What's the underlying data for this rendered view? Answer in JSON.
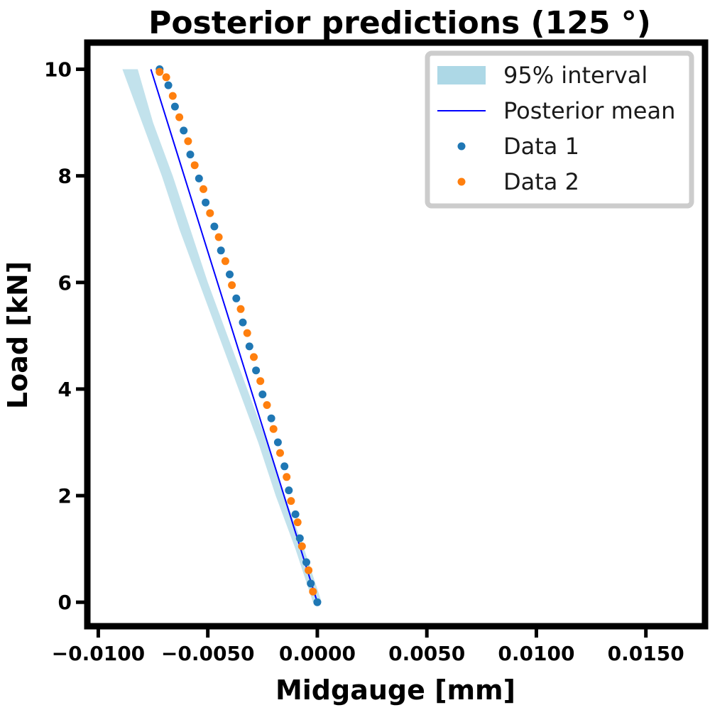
{
  "chart_data": {
    "type": "scatter",
    "title": "Posterior predictions (125 °)",
    "xlabel": "Midgauge [mm]",
    "ylabel": "Load [kN]",
    "xlim": [
      -0.0105,
      0.0177
    ],
    "ylim": [
      -0.45,
      10.5
    ],
    "x_ticks": [
      {
        "value": -0.01,
        "label": "−0.0100"
      },
      {
        "value": -0.005,
        "label": "−0.0050"
      },
      {
        "value": 0.0,
        "label": "0.0000"
      },
      {
        "value": 0.005,
        "label": "0.0050"
      },
      {
        "value": 0.01,
        "label": "0.0100"
      },
      {
        "value": 0.015,
        "label": "0.0150"
      }
    ],
    "y_ticks": [
      {
        "value": 0,
        "label": "0"
      },
      {
        "value": 2,
        "label": "2"
      },
      {
        "value": 4,
        "label": "4"
      },
      {
        "value": 6,
        "label": "6"
      },
      {
        "value": 8,
        "label": "8"
      },
      {
        "value": 10,
        "label": "10"
      }
    ],
    "grid": false,
    "legend_position": "top-right",
    "legend": [
      {
        "label": "95% interval",
        "kind": "band",
        "color": "#add8e6"
      },
      {
        "label": "Posterior mean",
        "kind": "line",
        "color": "#0000ff"
      },
      {
        "label": "Data 1",
        "kind": "marker",
        "color": "#1f77b4"
      },
      {
        "label": "Data 2",
        "kind": "marker",
        "color": "#ff7f0e"
      }
    ],
    "interval": {
      "color": "#add8e6",
      "y": [
        0,
        1,
        2,
        3,
        4,
        5,
        6,
        7,
        8,
        9,
        10
      ],
      "lower": [
        -0.0002,
        -0.001,
        -0.0019,
        -0.0027,
        -0.0036,
        -0.0045,
        -0.0054,
        -0.0063,
        -0.0071,
        -0.008,
        -0.0089
      ],
      "upper": [
        0.0002,
        -0.0006,
        -0.0015,
        -0.0023,
        -0.0032,
        -0.0041,
        -0.005,
        -0.0058,
        -0.0066,
        -0.0075,
        -0.0082
      ]
    },
    "series": [
      {
        "name": "Posterior mean",
        "kind": "line",
        "color": "#0000ff",
        "x": [
          0.0,
          -0.0076
        ],
        "y": [
          0.0,
          10.0
        ]
      },
      {
        "name": "Data 1",
        "kind": "scatter",
        "color": "#1f77b4",
        "x": [
          0.0,
          -0.0003,
          -0.0005,
          -0.0008,
          -0.001,
          -0.0013,
          -0.0015,
          -0.0018,
          -0.0021,
          -0.0025,
          -0.0028,
          -0.0031,
          -0.0034,
          -0.0037,
          -0.004,
          -0.0044,
          -0.0047,
          -0.0051,
          -0.0054,
          -0.0058,
          -0.0061,
          -0.0065,
          -0.0068,
          -0.0072
        ],
        "y": [
          0.0,
          0.35,
          0.75,
          1.2,
          1.65,
          2.1,
          2.55,
          3.0,
          3.45,
          3.9,
          4.35,
          4.8,
          5.25,
          5.7,
          6.15,
          6.6,
          7.05,
          7.5,
          7.95,
          8.4,
          8.85,
          9.3,
          9.7,
          10.0
        ]
      },
      {
        "name": "Data 2",
        "kind": "scatter",
        "color": "#ff7f0e",
        "x": [
          -0.0002,
          -0.0004,
          -0.0007,
          -0.0009,
          -0.0012,
          -0.0014,
          -0.0017,
          -0.002,
          -0.0023,
          -0.0026,
          -0.0029,
          -0.0032,
          -0.0035,
          -0.0039,
          -0.0042,
          -0.0045,
          -0.0049,
          -0.0052,
          -0.0056,
          -0.0059,
          -0.0063,
          -0.0066,
          -0.0069,
          -0.0072
        ],
        "y": [
          0.2,
          0.6,
          1.05,
          1.5,
          1.9,
          2.35,
          2.8,
          3.25,
          3.7,
          4.15,
          4.6,
          5.05,
          5.5,
          5.95,
          6.4,
          6.85,
          7.3,
          7.75,
          8.2,
          8.65,
          9.1,
          9.5,
          9.85,
          9.95
        ]
      }
    ]
  }
}
